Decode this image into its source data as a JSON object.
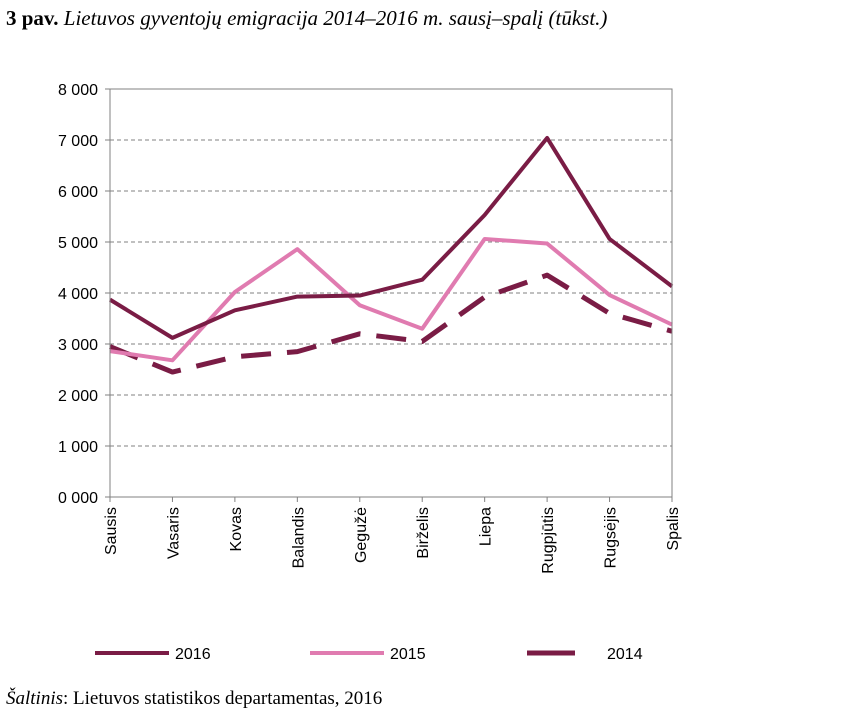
{
  "figure": {
    "label": "3 pav.",
    "title": "Lietuvos gyventojų emigracija 2014–2016 m. sausį–spalį (tūkst.)",
    "source_label": "Šaltinis",
    "source_text": ": Lietuvos statistikos departamentas, 2016"
  },
  "chart_data": {
    "type": "line",
    "title": "",
    "xlabel": "",
    "ylabel": "",
    "categories": [
      "Sausis",
      "Vasaris",
      "Kovas",
      "Balandis",
      "Gegužė",
      "Birželis",
      "Liepa",
      "Rugpjūtis",
      "Rugsėjis",
      "Spalis"
    ],
    "ylim": [
      0,
      8000
    ],
    "yticks": [
      0,
      1000,
      2000,
      3000,
      4000,
      5000,
      6000,
      7000,
      8000
    ],
    "ytick_labels": [
      "0 000",
      "1 000",
      "2 000",
      "3 000",
      "4 000",
      "5 000",
      "6 000",
      "7 000",
      "8 000"
    ],
    "grid": "horizontal dashed",
    "legend": "bottom",
    "series": [
      {
        "name": "2016",
        "color": "#7a1c45",
        "style": "solid",
        "values": [
          3870,
          3120,
          3660,
          3930,
          3950,
          4260,
          5530,
          7040,
          5060,
          4130
        ]
      },
      {
        "name": "2015",
        "color": "#e07bb0",
        "style": "solid",
        "values": [
          2860,
          2680,
          4020,
          4860,
          3760,
          3300,
          5060,
          4970,
          3960,
          3380
        ]
      },
      {
        "name": "2014",
        "color": "#7a1c45",
        "style": "dashed",
        "values": [
          2950,
          2450,
          2750,
          2850,
          3200,
          3050,
          3920,
          4350,
          3600,
          3250
        ]
      }
    ]
  }
}
